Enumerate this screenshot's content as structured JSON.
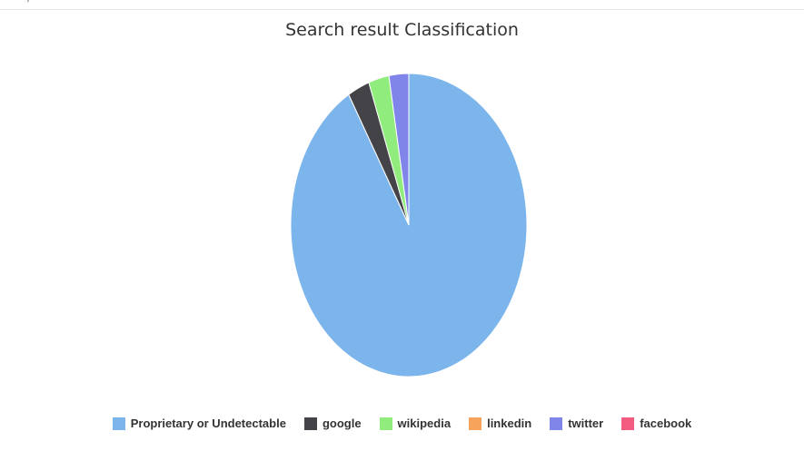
{
  "chart_data": {
    "type": "pie",
    "title": "Search result Classification",
    "legend_position": "bottom",
    "slices": [
      {
        "name": "Proprietary or Undetectable",
        "value": 91.5,
        "color": "#7cb5ec"
      },
      {
        "name": "google",
        "value": 3.0,
        "color": "#434348"
      },
      {
        "name": "wikipedia",
        "value": 2.8,
        "color": "#90ed7d"
      },
      {
        "name": "linkedin",
        "value": 0.0,
        "color": "#f7a35c"
      },
      {
        "name": "twitter",
        "value": 2.7,
        "color": "#8085e9"
      },
      {
        "name": "facebook",
        "value": 0.0,
        "color": "#f15c80"
      }
    ]
  }
}
